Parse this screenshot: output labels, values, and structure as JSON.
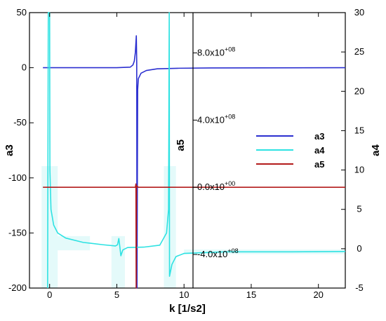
{
  "chart_data": {
    "type": "line",
    "xlabel": "k [1/s2]",
    "xlim": [
      -1.5,
      22
    ],
    "xticks": [
      "0",
      "5",
      "10",
      "15",
      "20"
    ],
    "xtick_values": [
      0,
      5,
      10,
      15,
      20
    ],
    "axes": {
      "a3": {
        "label": "a3",
        "side": "left",
        "ylim": [
          -200,
          50
        ],
        "ticks": [
          50,
          0,
          -50,
          -100,
          -150,
          -200
        ],
        "tick_labels": [
          "50",
          "0",
          "-50",
          "-100",
          "-150",
          "-200"
        ]
      },
      "a4": {
        "label": "a4",
        "side": "right",
        "ylim": [
          -5,
          30
        ],
        "ticks": [
          30,
          25,
          20,
          15,
          10,
          5,
          0,
          -5
        ],
        "tick_labels": [
          "30",
          "25",
          "20",
          "15",
          "10",
          "5",
          "0",
          "-5"
        ]
      },
      "a5": {
        "label": "a5",
        "side": "inner",
        "at_x": 10,
        "ylim": [
          -600000000.0,
          1040000000.0
        ],
        "ticks": [
          800000000.0,
          400000000.0,
          0,
          -400000000.0
        ],
        "tick_labels": [
          "8.0x10+08",
          "4.0x10+08",
          "0.0x10+00",
          "-4.0x10+08"
        ]
      }
    },
    "legend": {
      "position": "right",
      "entries": [
        "a3",
        "a4",
        "a5"
      ]
    },
    "series": [
      {
        "name": "a3",
        "axis": "a3",
        "color": "#2b2fd0",
        "points": [
          [
            -0.5,
            0
          ],
          [
            5.0,
            0
          ],
          [
            6.0,
            0.5
          ],
          [
            6.2,
            2.5
          ],
          [
            6.3,
            6
          ],
          [
            6.38,
            14
          ],
          [
            6.45,
            29
          ],
          [
            6.48,
            5
          ],
          [
            6.5,
            -200
          ],
          [
            6.55,
            -20
          ],
          [
            6.6,
            -10
          ],
          [
            6.8,
            -5
          ],
          [
            7.2,
            -2.5
          ],
          [
            8.0,
            -1
          ],
          [
            9.5,
            -0.5
          ],
          [
            12,
            -0.2
          ],
          [
            22,
            0
          ]
        ]
      },
      {
        "name": "a4",
        "axis": "a4",
        "color": "#2ee2e2",
        "points": [
          [
            -0.15,
            -5
          ],
          [
            -0.1,
            30
          ],
          [
            0.0,
            30
          ],
          [
            0.02,
            10
          ],
          [
            0.1,
            5
          ],
          [
            0.3,
            3
          ],
          [
            0.6,
            2
          ],
          [
            1.2,
            1.35
          ],
          [
            2.5,
            0.8
          ],
          [
            4.0,
            0.5
          ],
          [
            4.9,
            0.35
          ],
          [
            5.05,
            0.5
          ],
          [
            5.15,
            1.3
          ],
          [
            5.22,
            0.3
          ],
          [
            5.3,
            -0.9
          ],
          [
            5.45,
            -0.15
          ],
          [
            5.8,
            0.15
          ],
          [
            7.0,
            0.2
          ],
          [
            8.2,
            0.45
          ],
          [
            8.7,
            2
          ],
          [
            8.85,
            5
          ],
          [
            8.9,
            30
          ],
          [
            8.92,
            -3.5
          ],
          [
            9.1,
            -2
          ],
          [
            9.4,
            -1.0
          ],
          [
            10.0,
            -0.6
          ],
          [
            13,
            -0.4
          ],
          [
            18,
            -0.4
          ],
          [
            22,
            -0.35
          ]
        ]
      },
      {
        "name": "a5",
        "axis": "a5",
        "color": "#b31b1b",
        "points": [
          [
            -0.5,
            0
          ],
          [
            6.38,
            0
          ],
          [
            6.42,
            20000000.0
          ],
          [
            6.44,
            -600000000.0
          ],
          [
            6.46,
            10000000.0
          ],
          [
            6.6,
            0
          ],
          [
            22,
            0
          ]
        ]
      }
    ]
  }
}
